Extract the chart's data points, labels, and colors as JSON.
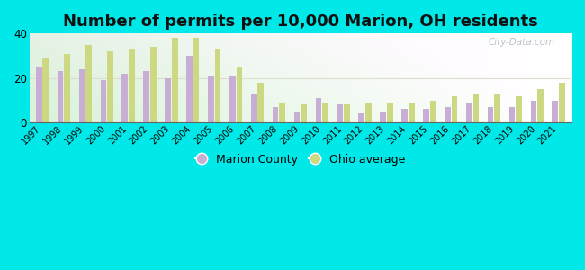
{
  "title": "Number of permits per 10,000 Marion, OH residents",
  "years": [
    1997,
    1998,
    1999,
    2000,
    2001,
    2002,
    2003,
    2004,
    2005,
    2006,
    2007,
    2008,
    2009,
    2010,
    2011,
    2012,
    2013,
    2014,
    2015,
    2016,
    2017,
    2018,
    2019,
    2020,
    2021
  ],
  "marion_county": [
    25,
    23,
    24,
    19,
    22,
    23,
    20,
    30,
    21,
    21,
    13,
    7,
    5,
    11,
    8,
    4,
    5,
    6,
    6,
    7,
    9,
    7,
    7,
    10,
    10
  ],
  "ohio_average": [
    29,
    31,
    35,
    32,
    33,
    34,
    38,
    38,
    33,
    25,
    18,
    9,
    8,
    9,
    8,
    9,
    9,
    9,
    10,
    12,
    13,
    13,
    12,
    15,
    18
  ],
  "marion_color": "#c8aed4",
  "ohio_color": "#ccd882",
  "background_outer": "#00e8e8",
  "ylim": [
    0,
    40
  ],
  "yticks": [
    0,
    20,
    40
  ],
  "title_fontsize": 13,
  "legend_marion": "Marion County",
  "legend_ohio": "Ohio average",
  "watermark": "City-Data.com"
}
